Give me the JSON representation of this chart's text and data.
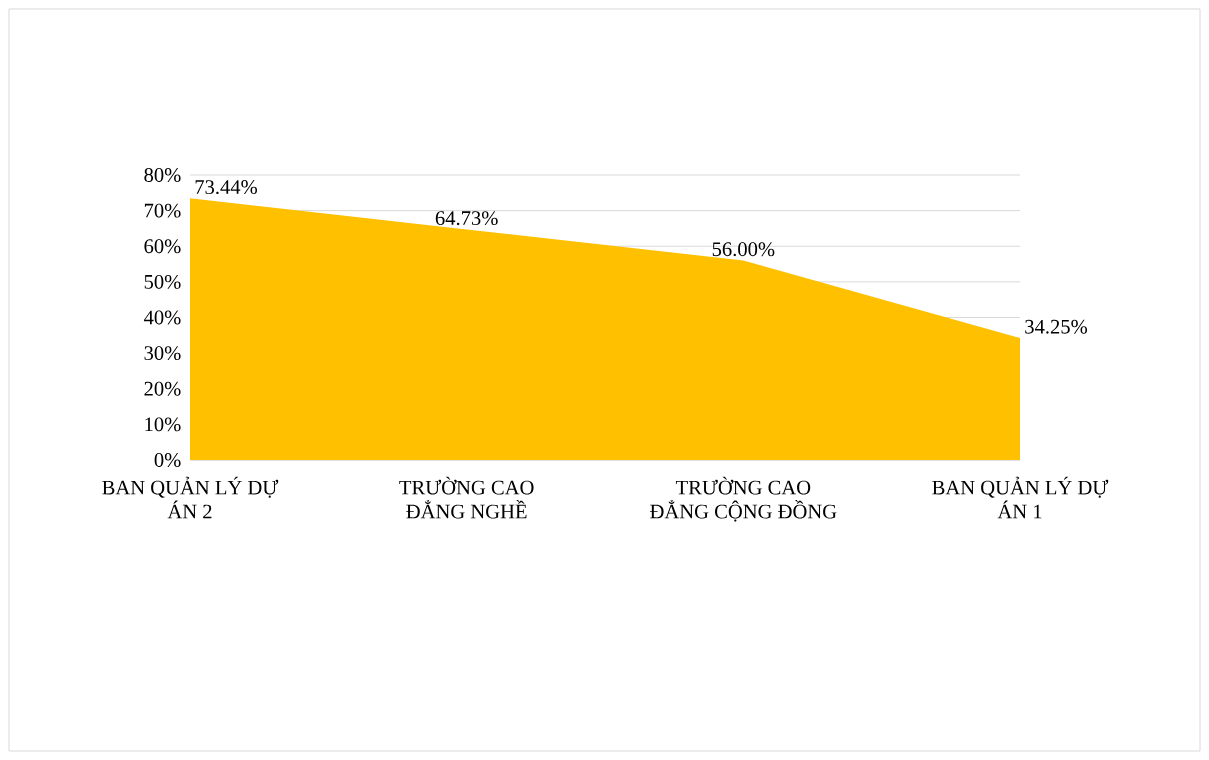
{
  "chart_data": {
    "type": "area",
    "categories": [
      "BAN QUẢN LÝ DỰ ÁN 2",
      "TRƯỜNG CAO ĐẲNG NGHỀ",
      "TRƯỜNG CAO ĐẲNG CỘNG ĐỒNG",
      "BAN QUẢN LÝ DỰ ÁN 1"
    ],
    "values": [
      73.44,
      64.73,
      56.0,
      34.25
    ],
    "value_labels": [
      "73.44%",
      "64.73%",
      "56.00%",
      "34.25%"
    ],
    "color": "#ffc000",
    "ylim": [
      0,
      80
    ],
    "yticks": [
      {
        "value": 0,
        "label": "0%"
      },
      {
        "value": 10,
        "label": "10%"
      },
      {
        "value": 20,
        "label": "20%"
      },
      {
        "value": 30,
        "label": "30%"
      },
      {
        "value": 40,
        "label": "40%"
      },
      {
        "value": 50,
        "label": "50%"
      },
      {
        "value": 60,
        "label": "60%"
      },
      {
        "value": 70,
        "label": "70%"
      },
      {
        "value": 80,
        "label": "80%"
      }
    ],
    "grid": "y"
  }
}
